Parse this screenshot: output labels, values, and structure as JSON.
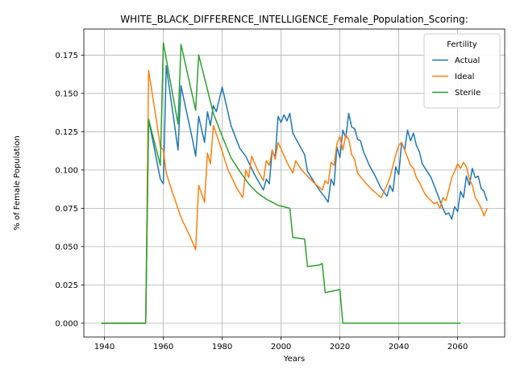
{
  "chart_data": {
    "type": "line",
    "title": "WHITE_BLACK_DIFFERENCE_INTELLIGENCE_Female_Population_Scoring:",
    "xlabel": "Years",
    "ylabel": "% of Female Population",
    "xlim": [
      1933,
      2076
    ],
    "ylim": [
      -0.009,
      0.192
    ],
    "xticks": [
      1940,
      1960,
      1980,
      2000,
      2020,
      2040,
      2060
    ],
    "xtick_labels": [
      "1940",
      "1960",
      "1980",
      "2000",
      "2020",
      "2040",
      "2060"
    ],
    "yticks": [
      0.0,
      0.025,
      0.05,
      0.075,
      0.1,
      0.125,
      0.15,
      0.175
    ],
    "ytick_labels": [
      "0.000",
      "0.025",
      "0.050",
      "0.075",
      "0.100",
      "0.125",
      "0.150",
      "0.175"
    ],
    "grid": true,
    "legend": {
      "title": "Fertility",
      "position": "top-right"
    },
    "series": [
      {
        "name": "Actual",
        "color": "#1f77b4",
        "x": [
          1939,
          1954,
          1955,
          1959,
          1960,
          1961,
          1965,
          1966,
          1967,
          1970,
          1971,
          1972,
          1974,
          1975,
          1976,
          1977,
          1978,
          1980,
          1983,
          1986,
          1988,
          1991,
          1994,
          1995,
          1996,
          1997,
          1998,
          1999,
          2000,
          2001,
          2002,
          2003,
          2004,
          2008,
          2009,
          2013,
          2015,
          2016,
          2017,
          2018,
          2019,
          2020,
          2021,
          2022,
          2023,
          2024,
          2025,
          2026,
          2027,
          2028,
          2030,
          2032,
          2034,
          2036,
          2037,
          2038,
          2039,
          2040,
          2041,
          2042,
          2043,
          2044,
          2045,
          2046,
          2047,
          2048,
          2051,
          2054,
          2055,
          2056,
          2057,
          2058,
          2059,
          2060,
          2061,
          2062,
          2063,
          2064,
          2065,
          2066,
          2067,
          2068,
          2069,
          2070
        ],
        "values": [
          0.0,
          0.0,
          0.133,
          0.094,
          0.091,
          0.168,
          0.113,
          0.155,
          0.146,
          0.119,
          0.109,
          0.135,
          0.118,
          0.138,
          0.129,
          0.142,
          0.138,
          0.154,
          0.129,
          0.114,
          0.109,
          0.097,
          0.087,
          0.094,
          0.091,
          0.113,
          0.108,
          0.135,
          0.131,
          0.136,
          0.132,
          0.137,
          0.124,
          0.11,
          0.099,
          0.087,
          0.082,
          0.079,
          0.094,
          0.09,
          0.115,
          0.108,
          0.126,
          0.121,
          0.137,
          0.128,
          0.127,
          0.12,
          0.119,
          0.112,
          0.103,
          0.096,
          0.088,
          0.083,
          0.09,
          0.086,
          0.102,
          0.097,
          0.118,
          0.113,
          0.126,
          0.119,
          0.124,
          0.116,
          0.112,
          0.104,
          0.095,
          0.08,
          0.075,
          0.071,
          0.072,
          0.068,
          0.076,
          0.073,
          0.086,
          0.082,
          0.096,
          0.09,
          0.101,
          0.095,
          0.096,
          0.088,
          0.086,
          0.08
        ]
      },
      {
        "name": "Ideal",
        "color": "#ff7f0e",
        "x": [
          1939,
          1954,
          1955,
          1958,
          1959,
          1960,
          1961,
          1963,
          1966,
          1969,
          1971,
          1972,
          1974,
          1975,
          1976,
          1977,
          1979,
          1982,
          1985,
          1987,
          1988,
          1989,
          1990,
          1992,
          1994,
          1995,
          1996,
          1997,
          1998,
          1999,
          2002,
          2004,
          2005,
          2007,
          2011,
          2014,
          2015,
          2016,
          2017,
          2018,
          2019,
          2020,
          2021,
          2022,
          2023,
          2024,
          2025,
          2026,
          2028,
          2031,
          2034,
          2036,
          2037,
          2039,
          2040,
          2041,
          2042,
          2044,
          2045,
          2046,
          2047,
          2049,
          2051,
          2052,
          2053,
          2054,
          2055,
          2056,
          2057,
          2058,
          2059,
          2060,
          2061,
          2062,
          2063,
          2064,
          2065,
          2066,
          2067,
          2068,
          2069,
          2070
        ],
        "values": [
          0.0,
          0.0,
          0.165,
          0.128,
          0.115,
          0.113,
          0.098,
          0.086,
          0.069,
          0.057,
          0.048,
          0.09,
          0.079,
          0.111,
          0.104,
          0.129,
          0.118,
          0.1,
          0.088,
          0.082,
          0.1,
          0.095,
          0.109,
          0.1,
          0.093,
          0.106,
          0.103,
          0.113,
          0.107,
          0.118,
          0.105,
          0.098,
          0.106,
          0.1,
          0.092,
          0.087,
          0.093,
          0.091,
          0.105,
          0.103,
          0.117,
          0.122,
          0.113,
          0.123,
          0.12,
          0.11,
          0.107,
          0.098,
          0.093,
          0.087,
          0.082,
          0.09,
          0.095,
          0.11,
          0.116,
          0.118,
          0.113,
          0.103,
          0.101,
          0.095,
          0.092,
          0.084,
          0.08,
          0.078,
          0.079,
          0.075,
          0.082,
          0.08,
          0.087,
          0.095,
          0.099,
          0.104,
          0.101,
          0.105,
          0.102,
          0.094,
          0.09,
          0.082,
          0.079,
          0.075,
          0.07,
          0.075
        ]
      },
      {
        "name": "Sterile",
        "color": "#2ca02c",
        "x": [
          1939,
          1954,
          1955,
          1959,
          1960,
          1965,
          1966,
          1971,
          1972,
          1974,
          1977,
          1980,
          1983,
          1986,
          1989,
          1992,
          1995,
          1998,
          1999,
          2003,
          2004,
          2008,
          2009,
          2013,
          2014,
          2015,
          2020,
          2021,
          2061
        ],
        "values": [
          0.0,
          0.0,
          0.133,
          0.103,
          0.183,
          0.13,
          0.182,
          0.139,
          0.175,
          0.16,
          0.137,
          0.122,
          0.108,
          0.099,
          0.091,
          0.085,
          0.081,
          0.078,
          0.077,
          0.075,
          0.056,
          0.055,
          0.037,
          0.038,
          0.039,
          0.02,
          0.022,
          0.0,
          0.0
        ]
      }
    ]
  }
}
